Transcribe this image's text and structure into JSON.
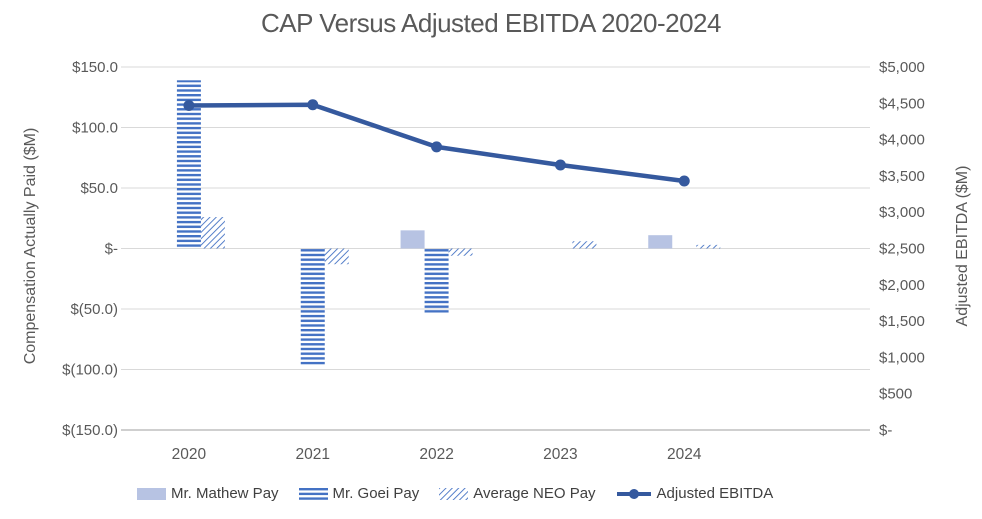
{
  "chart_data": {
    "type": "combo-bar-line",
    "title": "CAP Versus Adjusted EBITDA 2020-2024",
    "categories": [
      "2020",
      "2021",
      "2022",
      "2023",
      "2024"
    ],
    "series": [
      {
        "id": "mathew",
        "name": "Mr. Mathew Pay",
        "type": "bar",
        "axis": "left",
        "style": "solid",
        "color": "#b7c3e3",
        "values": [
          0,
          0,
          15,
          0,
          11
        ]
      },
      {
        "id": "goei",
        "name": "Mr. Goei Pay",
        "type": "bar",
        "axis": "left",
        "style": "hstripe",
        "color": "#4472c4",
        "values": [
          139,
          -96,
          -53,
          0,
          0
        ]
      },
      {
        "id": "neo",
        "name": "Average NEO Pay",
        "type": "bar",
        "axis": "left",
        "style": "dhatch",
        "color": "#4472c4",
        "values": [
          26,
          -13,
          -6,
          6,
          3
        ]
      },
      {
        "id": "ebitda",
        "name": "Adjusted EBITDA",
        "type": "line",
        "axis": "right",
        "style": "line-marker",
        "color": "#35599e",
        "values": [
          4470,
          4480,
          3900,
          3650,
          3430
        ]
      }
    ],
    "left_axis": {
      "title": "Compensation Actually Paid ($M)",
      "min": -150,
      "max": 150,
      "tick_values": [
        150,
        100,
        50,
        0,
        -50,
        -100,
        -150
      ],
      "tick_labels": [
        "$150.0",
        "$100.0",
        "$50.0",
        "$-",
        "$(50.0)",
        "$(100.0)",
        "$(150.0)"
      ]
    },
    "right_axis": {
      "title": "Adjusted EBITDA ($M)",
      "min": 0,
      "max": 5000,
      "tick_values": [
        5000,
        4500,
        4000,
        3500,
        3000,
        2500,
        2000,
        1500,
        1000,
        500,
        0
      ],
      "tick_labels": [
        "$5,000",
        "$4,500",
        "$4,000",
        "$3,500",
        "$3,000",
        "$2,500",
        "$2,000",
        "$1,500",
        "$1,000",
        "$500",
        "$-"
      ]
    },
    "grid": true,
    "legend_position": "bottom",
    "empty_trailing_category_slots": 1
  },
  "theme": {
    "gridline": "#d9d9d9",
    "axis_line": "#bfbfbf",
    "tick_text": "#595959",
    "legend_text": "#404040"
  }
}
